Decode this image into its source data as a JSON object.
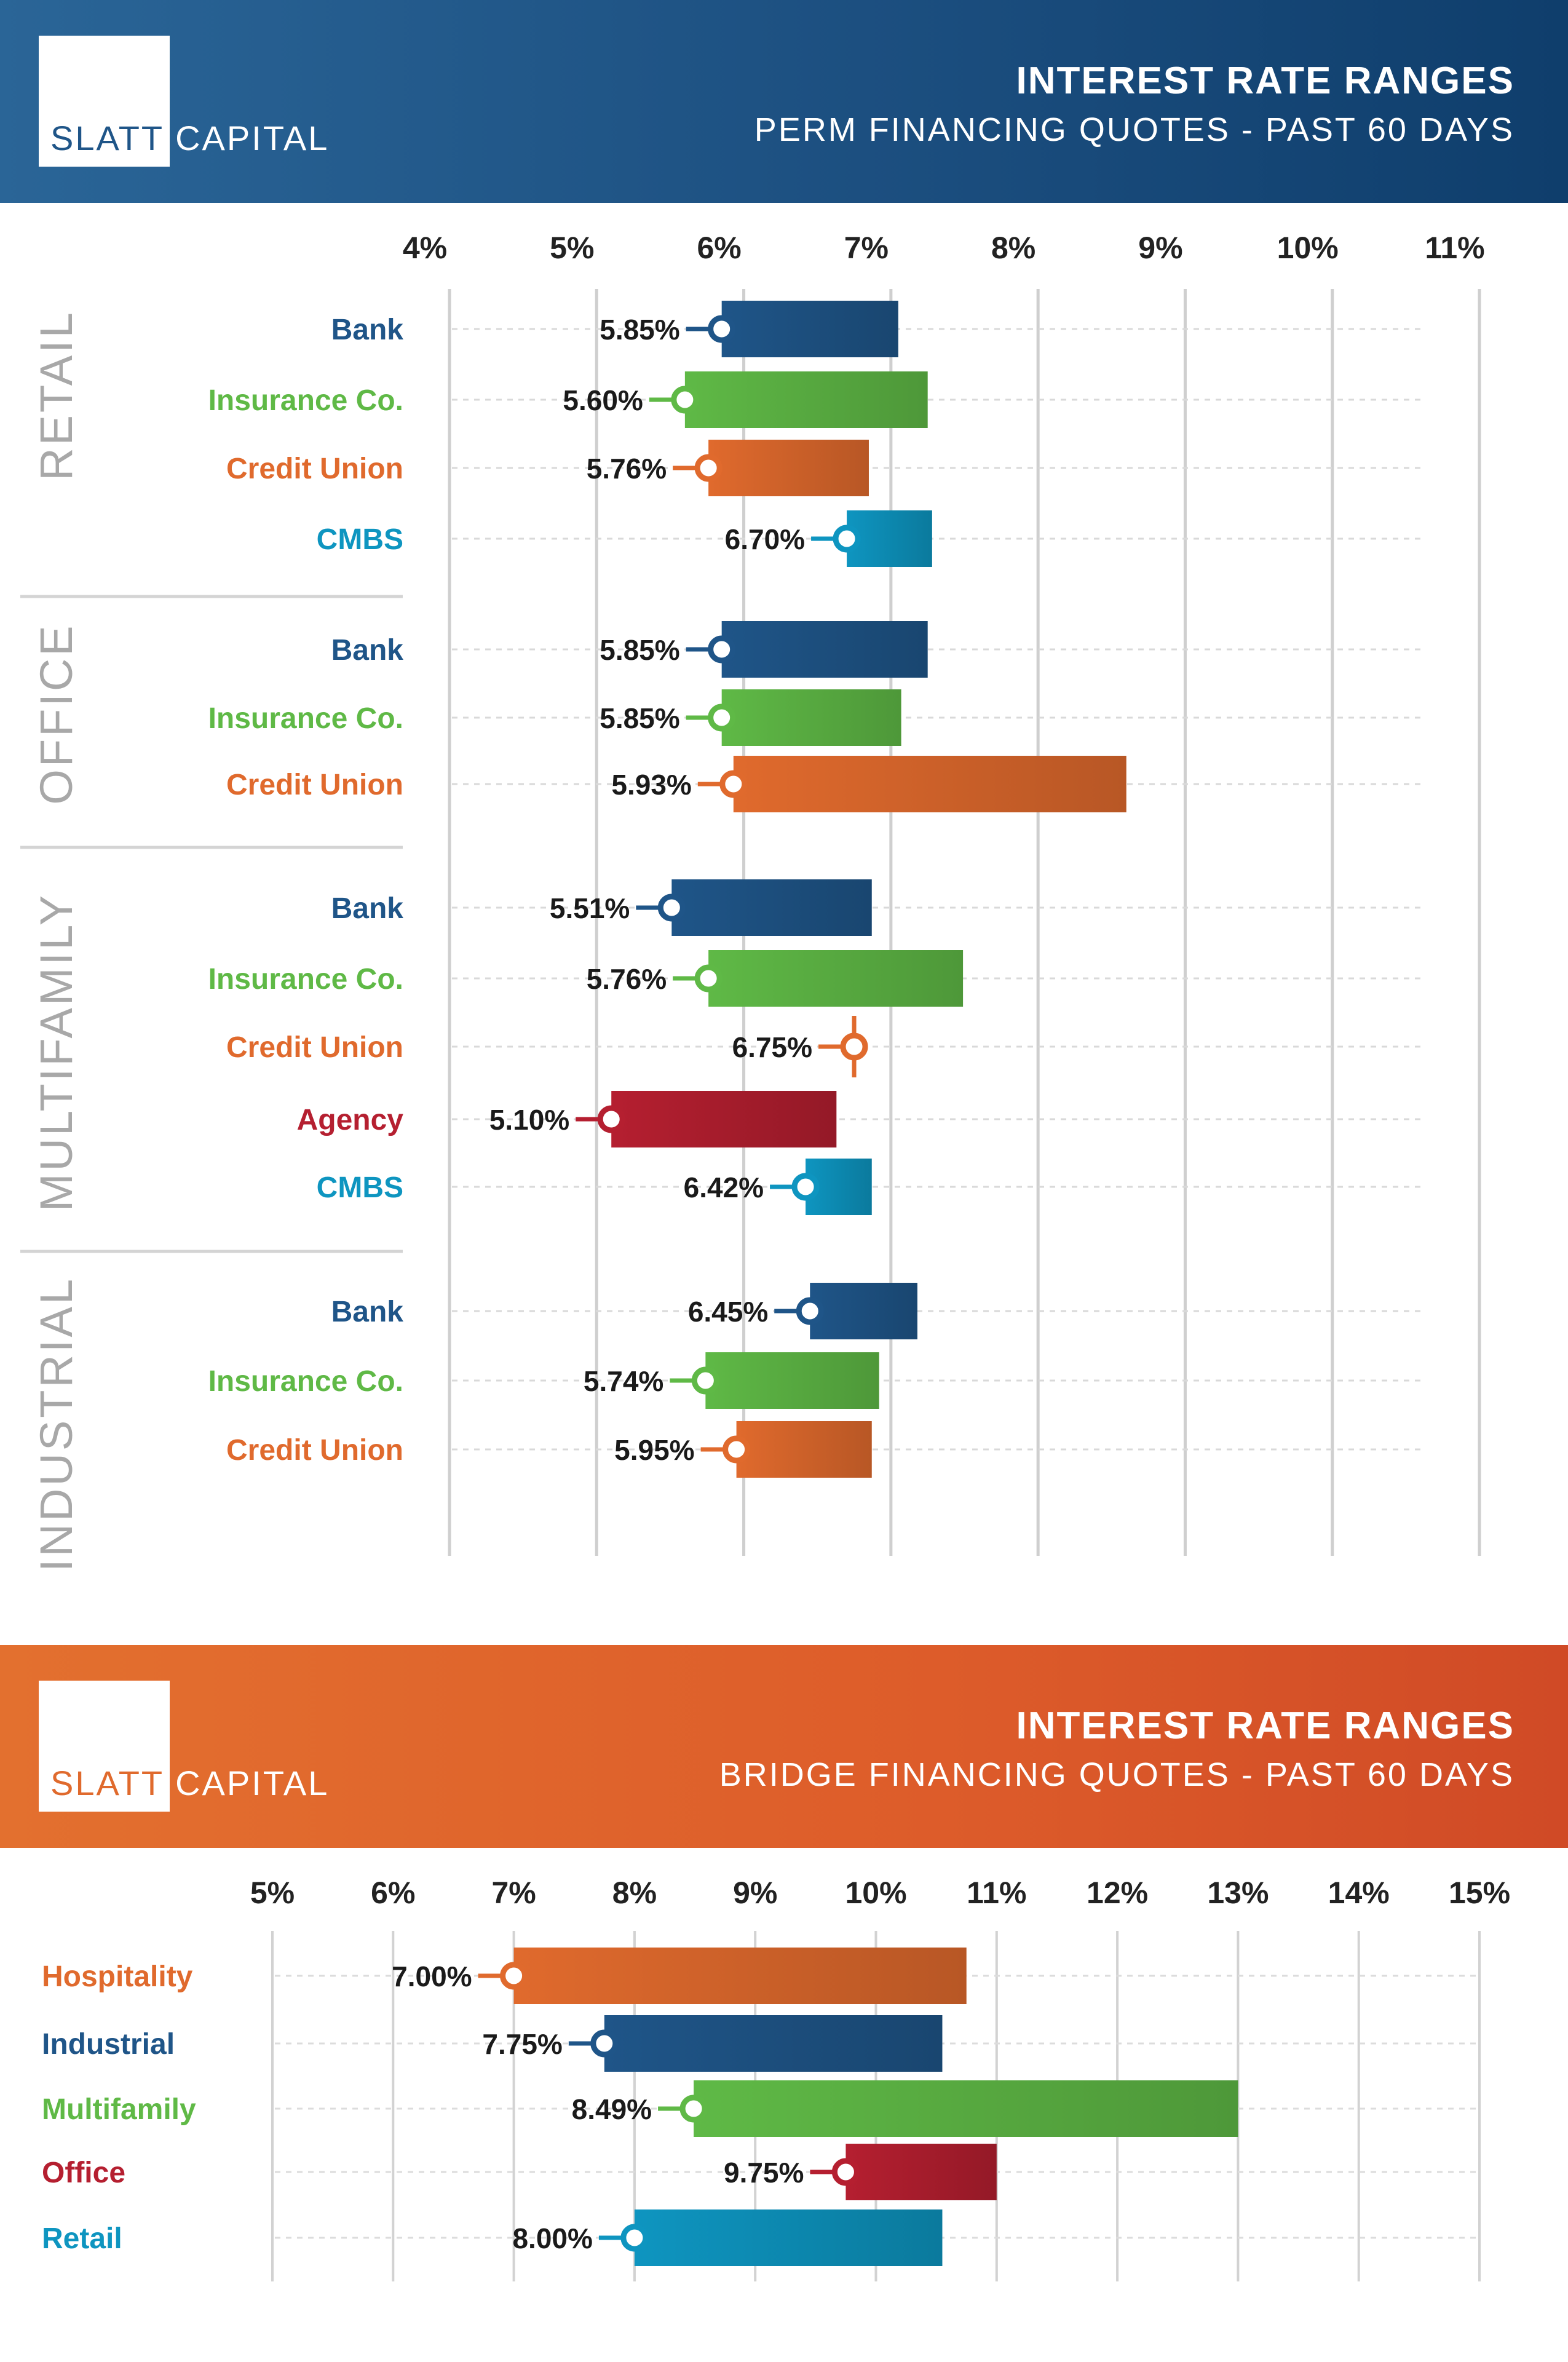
{
  "colors": {
    "bank": "#1f5588",
    "insurance": "#5fb946",
    "credit_union": "#e06a2d",
    "cmbs": "#0e95c0",
    "agency": "#b51f30",
    "gray_label": "#a8a8a8"
  },
  "perm": {
    "logo": {
      "word1": "SLATT",
      "word2": "CAPITAL"
    },
    "title": "INTEREST RATE RANGES",
    "subtitle": "PERM FINANCING QUOTES - PAST 60 DAYS"
  },
  "bridge": {
    "logo": {
      "word1": "SLATT",
      "word2": "CAPITAL"
    },
    "title": "INTEREST RATE RANGES",
    "subtitle": "BRIDGE FINANCING QUOTES - PAST 60 DAYS"
  },
  "chart_data": [
    {
      "type": "bar",
      "subtype": "floating-range",
      "title": "INTEREST RATE RANGES",
      "subtitle": "PERM FINANCING QUOTES - PAST 60 DAYS",
      "xlim": [
        4,
        11
      ],
      "xticks": [
        "4%",
        "5%",
        "6%",
        "7%",
        "8%",
        "9%",
        "10%",
        "11%"
      ],
      "groups": [
        {
          "name": "RETAIL",
          "items": [
            {
              "lender": "Bank",
              "color_key": "bank",
              "low": 5.85,
              "high": 7.05,
              "low_label": "5.85%"
            },
            {
              "lender": "Insurance Co.",
              "color_key": "insurance",
              "low": 5.6,
              "high": 7.25,
              "low_label": "5.60%"
            },
            {
              "lender": "Credit Union",
              "color_key": "credit_union",
              "low": 5.76,
              "high": 6.85,
              "low_label": "5.76%"
            },
            {
              "lender": "CMBS",
              "color_key": "cmbs",
              "low": 6.7,
              "high": 7.28,
              "low_label": "6.70%"
            }
          ]
        },
        {
          "name": "OFFICE",
          "items": [
            {
              "lender": "Bank",
              "color_key": "bank",
              "low": 5.85,
              "high": 7.25,
              "low_label": "5.85%"
            },
            {
              "lender": "Insurance Co.",
              "color_key": "insurance",
              "low": 5.85,
              "high": 7.07,
              "low_label": "5.85%"
            },
            {
              "lender": "Credit Union",
              "color_key": "credit_union",
              "low": 5.93,
              "high": 8.6,
              "low_label": "5.93%"
            }
          ]
        },
        {
          "name": "MULTIFAMILY",
          "items": [
            {
              "lender": "Bank",
              "color_key": "bank",
              "low": 5.51,
              "high": 6.87,
              "low_label": "5.51%"
            },
            {
              "lender": "Insurance Co.",
              "color_key": "insurance",
              "low": 5.76,
              "high": 7.49,
              "low_label": "5.76%"
            },
            {
              "lender": "Credit Union",
              "color_key": "credit_union",
              "low": 6.75,
              "high": 6.75,
              "low_label": "6.75%"
            },
            {
              "lender": "Agency",
              "color_key": "agency",
              "low": 5.1,
              "high": 6.63,
              "low_label": "5.10%"
            },
            {
              "lender": "CMBS",
              "color_key": "cmbs",
              "low": 6.42,
              "high": 6.87,
              "low_label": "6.42%"
            }
          ]
        },
        {
          "name": "INDUSTRIAL",
          "items": [
            {
              "lender": "Bank",
              "color_key": "bank",
              "low": 6.45,
              "high": 7.18,
              "low_label": "6.45%"
            },
            {
              "lender": "Insurance Co.",
              "color_key": "insurance",
              "low": 5.74,
              "high": 6.92,
              "low_label": "5.74%"
            },
            {
              "lender": "Credit Union",
              "color_key": "credit_union",
              "low": 5.95,
              "high": 6.87,
              "low_label": "5.95%"
            }
          ]
        }
      ]
    },
    {
      "type": "bar",
      "subtype": "floating-range",
      "title": "INTEREST RATE RANGES",
      "subtitle": "BRIDGE FINANCING QUOTES - PAST 60 DAYS",
      "xlim": [
        5,
        15
      ],
      "xticks": [
        "5%",
        "6%",
        "7%",
        "8%",
        "9%",
        "10%",
        "11%",
        "12%",
        "13%",
        "14%",
        "15%"
      ],
      "items": [
        {
          "category": "Hospitality",
          "color_key": "credit_union",
          "low": 7.0,
          "high": 10.75,
          "low_label": "7.00%"
        },
        {
          "category": "Industrial",
          "color_key": "bank",
          "low": 7.75,
          "high": 10.55,
          "low_label": "7.75%"
        },
        {
          "category": "Multifamily",
          "color_key": "insurance",
          "low": 8.49,
          "high": 13.0,
          "low_label": "8.49%"
        },
        {
          "category": "Office",
          "color_key": "agency",
          "low": 9.75,
          "high": 11.0,
          "low_label": "9.75%"
        },
        {
          "category": "Retail",
          "color_key": "cmbs",
          "low": 8.0,
          "high": 10.55,
          "low_label": "8.00%"
        }
      ]
    }
  ]
}
